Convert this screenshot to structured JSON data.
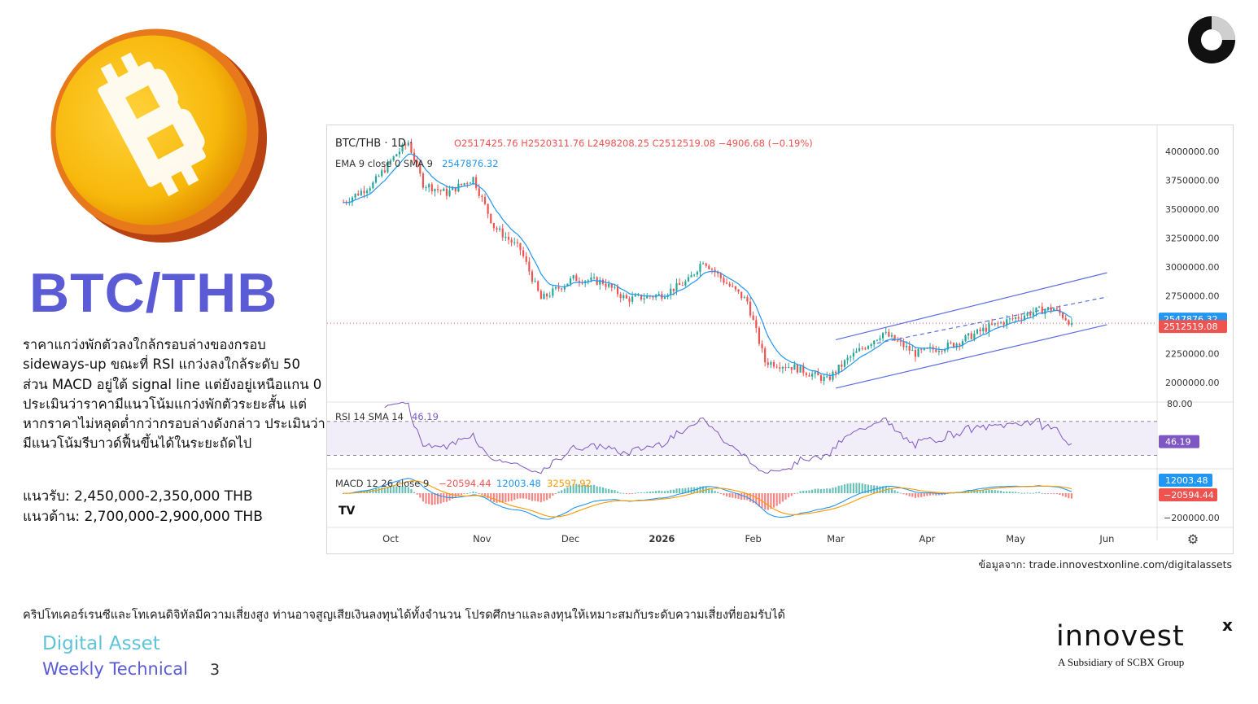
{
  "title": "BTC/THB",
  "analysis_text": "ราคาแกว่งพักตัวลงใกล้กรอบล่างของกรอบ sideways-up ขณะที่ RSI แกว่งลงใกล้ระดับ 50 ส่วน MACD อยู่ใต้ signal line แต่ยังอยู่เหนือแกน 0 ประเมินว่าราคามีแนวโน้มแกว่งพักตัวระยะสั้น แต่หากราคาไม่หลุดต่ำกว่ากรอบล่างดังกล่าว ประเมินว่ามีแนวโน้มรีบาวด์ฟื้นขึ้นได้ในระยะถัดไป",
  "support": "แนวรับ: 2,450,000-2,350,000 THB",
  "resistance": "แนวต้าน: 2,700,000-2,900,000 THB",
  "source": "ข้อมูลจาก: trade.innovestxonline.com/digitalassets",
  "disclaimer": "คริปโทเคอร์เรนซีและโทเคนดิจิทัลมีความเสี่ยงสูง ท่านอาจสูญเสียเงินลงทุนได้ทั้งจำนวน โปรดศึกษาและลงทุนให้เหมาะสมกับระดับความเสี่ยงที่ยอมรับได้",
  "footer": {
    "line1": "Digital Asset",
    "line2": "Weekly Technical",
    "page": "3"
  },
  "brand": {
    "name": "innovest",
    "mark": "x",
    "subtitle": "A Subsidiary of SCBX Group"
  },
  "colors": {
    "title": "#5b5bd6",
    "footer_line1": "#5fc3d8",
    "up": "#26a69a",
    "down": "#ef5350",
    "ema": "#2196f3",
    "rsi": "#7e57c2",
    "macd": "#2196f3",
    "signal": "#ff9800",
    "channel": "#5b6ee1"
  },
  "chart_data": {
    "type": "candlestick",
    "symbol": "BTC/THB",
    "interval": "1D",
    "ohlc_legend": {
      "o": "O2517425.76",
      "h": "H2520311.76",
      "l": "L2498208.25",
      "c": "C2512519.08",
      "chg": "−4906.68 (−0.19%)"
    },
    "ema_legend": {
      "label": "EMA 9 close 0 SMA 9",
      "value": "2547876.32"
    },
    "rsi_legend": {
      "label": "RSI 14 SMA 14",
      "value": "46.19"
    },
    "macd_legend": {
      "label": "MACD 12 26 close 9",
      "hist": "−20594.44",
      "macd": "12003.48",
      "signal": "32597.92"
    },
    "price_axis": {
      "ticks": [
        "4000000.00",
        "3750000.00",
        "3500000.00",
        "3250000.00",
        "3000000.00",
        "2750000.00",
        "2500000.00",
        "2250000.00",
        "2000000.00"
      ],
      "ylim": [
        1830000,
        4100000
      ]
    },
    "last_price_label": "2512519.08",
    "ema_price_label": "2547876.32",
    "rsi_axis": {
      "top": "80.00",
      "bottom": "40.00",
      "value_label": "46.19"
    },
    "macd_axis": {
      "labels": [
        "12003.48",
        "−20594.44"
      ],
      "bottom": "−200000.00"
    },
    "x_labels": [
      "Oct",
      "Nov",
      "Dec",
      "2026",
      "Feb",
      "Mar",
      "Apr",
      "May",
      "Jun"
    ],
    "key_points": [
      {
        "date": "2025-09-15",
        "close": 3560000
      },
      {
        "date": "2025-09-25",
        "close": 3720000
      },
      {
        "date": "2025-10-03",
        "close": 3980000
      },
      {
        "date": "2025-10-07",
        "close": 4080000
      },
      {
        "date": "2025-10-12",
        "close": 3720000
      },
      {
        "date": "2025-10-20",
        "close": 3640000
      },
      {
        "date": "2025-10-29",
        "close": 3770000
      },
      {
        "date": "2025-11-05",
        "close": 3350000
      },
      {
        "date": "2025-11-14",
        "close": 3150000
      },
      {
        "date": "2025-11-21",
        "close": 2720000
      },
      {
        "date": "2025-12-02",
        "close": 2900000
      },
      {
        "date": "2025-12-12",
        "close": 2870000
      },
      {
        "date": "2025-12-20",
        "close": 2720000
      },
      {
        "date": "2026-01-01",
        "close": 2760000
      },
      {
        "date": "2026-01-10",
        "close": 2880000
      },
      {
        "date": "2026-01-15",
        "close": 3060000
      },
      {
        "date": "2026-01-22",
        "close": 2880000
      },
      {
        "date": "2026-01-30",
        "close": 2700000
      },
      {
        "date": "2026-02-05",
        "close": 2180000
      },
      {
        "date": "2026-02-15",
        "close": 2130000
      },
      {
        "date": "2026-02-26",
        "close": 2020000
      },
      {
        "date": "2026-03-05",
        "close": 2200000
      },
      {
        "date": "2026-03-17",
        "close": 2430000
      },
      {
        "date": "2026-03-28",
        "close": 2250000
      },
      {
        "date": "2026-04-10",
        "close": 2330000
      },
      {
        "date": "2026-04-22",
        "close": 2480000
      },
      {
        "date": "2026-05-08",
        "close": 2620000
      },
      {
        "date": "2026-05-14",
        "close": 2640000
      },
      {
        "date": "2026-05-20",
        "close": 2512519
      }
    ],
    "channel": {
      "upper": [
        {
          "date": "2026-03-01",
          "price": 2370000
        },
        {
          "date": "2026-06-01",
          "price": 2950000
        }
      ],
      "mid": [
        {
          "date": "2026-03-15",
          "price": 2340000
        },
        {
          "date": "2026-06-01",
          "price": 2740000
        }
      ],
      "lower": [
        {
          "date": "2026-03-01",
          "price": 1950000
        },
        {
          "date": "2026-06-01",
          "price": 2500000
        }
      ]
    }
  }
}
